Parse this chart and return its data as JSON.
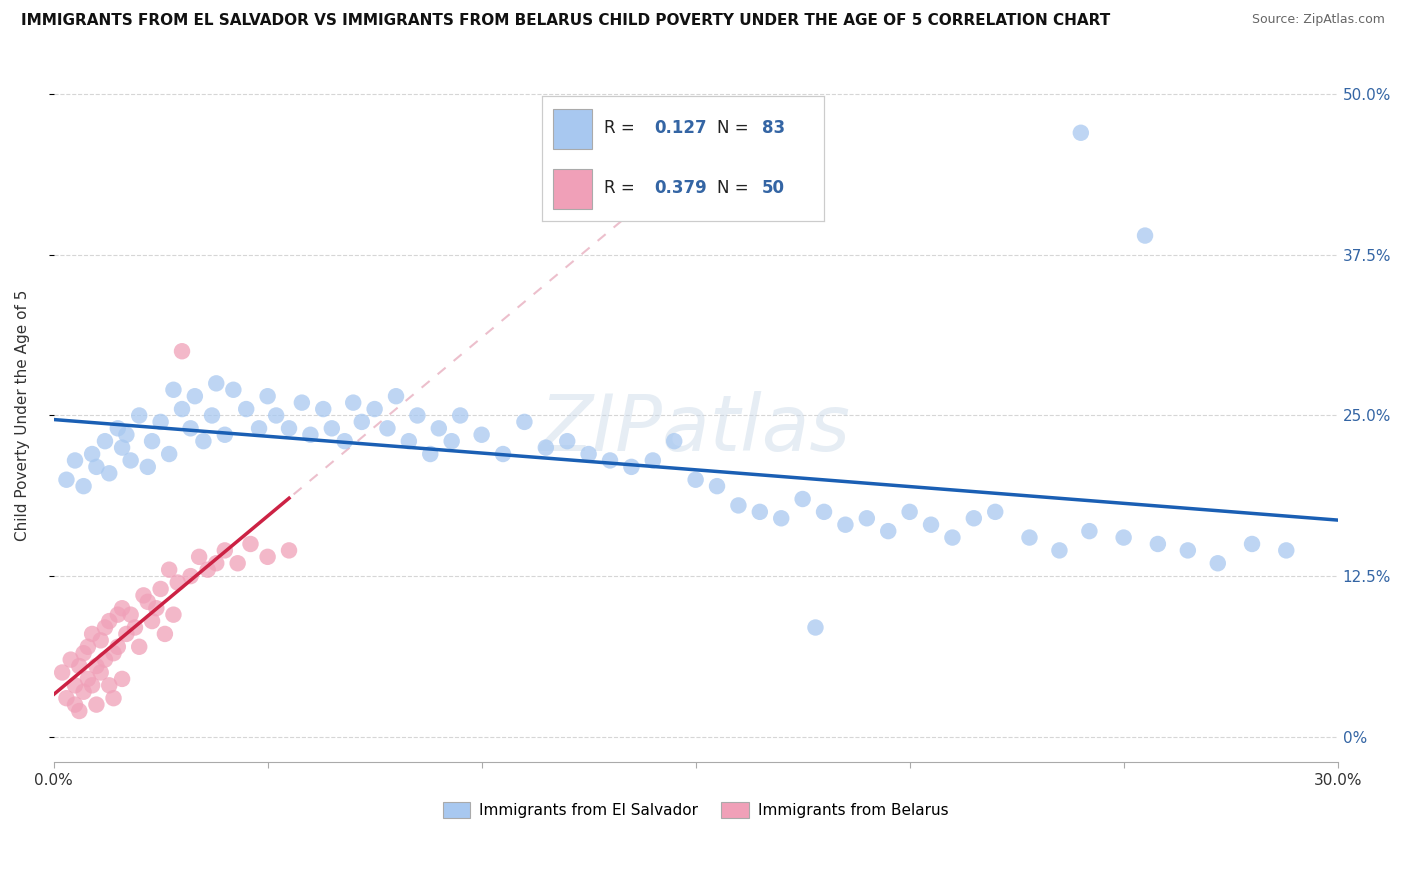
{
  "title": "IMMIGRANTS FROM EL SALVADOR VS IMMIGRANTS FROM BELARUS CHILD POVERTY UNDER THE AGE OF 5 CORRELATION CHART",
  "source": "Source: ZipAtlas.com",
  "ylabel": "Child Poverty Under the Age of 5",
  "watermark": "ZIPatlas",
  "xlim": [
    0.0,
    0.3
  ],
  "ylim": [
    -0.02,
    0.52
  ],
  "series1_label": "Immigrants from El Salvador",
  "series2_label": "Immigrants from Belarus",
  "series1_color": "#a8c8f0",
  "series2_color": "#f0a0b8",
  "series1_line_color": "#1a5fb4",
  "series2_line_color": "#cc2244",
  "series2_trendline_bg_color": "#e8b0c0",
  "R1": 0.127,
  "N1": 83,
  "R2": 0.379,
  "N2": 50,
  "legend_color": "#3465a4",
  "yticks": [
    0.0,
    0.125,
    0.25,
    0.375,
    0.5
  ],
  "ytick_labels": [
    "0%",
    "12.5%",
    "25.0%",
    "37.5%",
    "50.0%"
  ],
  "s1_x": [
    0.003,
    0.005,
    0.007,
    0.009,
    0.01,
    0.012,
    0.013,
    0.015,
    0.016,
    0.017,
    0.018,
    0.02,
    0.022,
    0.023,
    0.025,
    0.027,
    0.028,
    0.03,
    0.032,
    0.033,
    0.035,
    0.037,
    0.038,
    0.04,
    0.042,
    0.045,
    0.048,
    0.05,
    0.052,
    0.055,
    0.058,
    0.06,
    0.063,
    0.065,
    0.068,
    0.07,
    0.072,
    0.075,
    0.078,
    0.08,
    0.083,
    0.085,
    0.088,
    0.09,
    0.093,
    0.095,
    0.1,
    0.105,
    0.11,
    0.115,
    0.12,
    0.125,
    0.13,
    0.135,
    0.14,
    0.145,
    0.15,
    0.155,
    0.16,
    0.165,
    0.17,
    0.175,
    0.18,
    0.185,
    0.19,
    0.195,
    0.2,
    0.205,
    0.21,
    0.215,
    0.22,
    0.228,
    0.235,
    0.242,
    0.25,
    0.258,
    0.265,
    0.272,
    0.28,
    0.288,
    0.255,
    0.24,
    0.178
  ],
  "s1_y": [
    0.2,
    0.215,
    0.195,
    0.22,
    0.21,
    0.23,
    0.205,
    0.24,
    0.225,
    0.235,
    0.215,
    0.25,
    0.21,
    0.23,
    0.245,
    0.22,
    0.27,
    0.255,
    0.24,
    0.265,
    0.23,
    0.25,
    0.275,
    0.235,
    0.27,
    0.255,
    0.24,
    0.265,
    0.25,
    0.24,
    0.26,
    0.235,
    0.255,
    0.24,
    0.23,
    0.26,
    0.245,
    0.255,
    0.24,
    0.265,
    0.23,
    0.25,
    0.22,
    0.24,
    0.23,
    0.25,
    0.235,
    0.22,
    0.245,
    0.225,
    0.23,
    0.22,
    0.215,
    0.21,
    0.215,
    0.23,
    0.2,
    0.195,
    0.18,
    0.175,
    0.17,
    0.185,
    0.175,
    0.165,
    0.17,
    0.16,
    0.175,
    0.165,
    0.155,
    0.17,
    0.175,
    0.155,
    0.145,
    0.16,
    0.155,
    0.15,
    0.145,
    0.135,
    0.15,
    0.145,
    0.39,
    0.47,
    0.085
  ],
  "s2_x": [
    0.002,
    0.003,
    0.004,
    0.005,
    0.005,
    0.006,
    0.006,
    0.007,
    0.007,
    0.008,
    0.008,
    0.009,
    0.009,
    0.01,
    0.01,
    0.011,
    0.011,
    0.012,
    0.012,
    0.013,
    0.013,
    0.014,
    0.014,
    0.015,
    0.015,
    0.016,
    0.016,
    0.017,
    0.018,
    0.019,
    0.02,
    0.021,
    0.022,
    0.023,
    0.024,
    0.025,
    0.026,
    0.027,
    0.028,
    0.029,
    0.03,
    0.032,
    0.034,
    0.036,
    0.038,
    0.04,
    0.043,
    0.046,
    0.05,
    0.055
  ],
  "s2_y": [
    0.05,
    0.03,
    0.06,
    0.025,
    0.04,
    0.055,
    0.02,
    0.065,
    0.035,
    0.07,
    0.045,
    0.04,
    0.08,
    0.055,
    0.025,
    0.075,
    0.05,
    0.06,
    0.085,
    0.04,
    0.09,
    0.065,
    0.03,
    0.095,
    0.07,
    0.045,
    0.1,
    0.08,
    0.095,
    0.085,
    0.07,
    0.11,
    0.105,
    0.09,
    0.1,
    0.115,
    0.08,
    0.13,
    0.095,
    0.12,
    0.3,
    0.125,
    0.14,
    0.13,
    0.135,
    0.145,
    0.135,
    0.15,
    0.14,
    0.145
  ]
}
